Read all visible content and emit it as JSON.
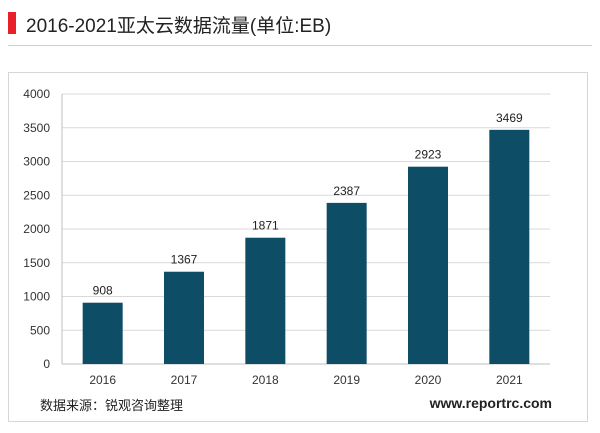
{
  "header": {
    "title": "2016-2021亚太云数据流量(单位:EB)",
    "accent_color": "#e8202a"
  },
  "chart_data": {
    "type": "bar",
    "title": "",
    "xlabel": "",
    "ylabel": "",
    "categories": [
      "2016",
      "2017",
      "2018",
      "2019",
      "2020",
      "2021"
    ],
    "values": [
      908,
      1367,
      1871,
      2387,
      2923,
      3469
    ],
    "ylim": [
      0,
      4000
    ],
    "yticks": [
      0,
      500,
      1000,
      1500,
      2000,
      2500,
      3000,
      3500,
      4000
    ],
    "grid": true,
    "bar_color": "#0e4d66",
    "data_labels": true
  },
  "footer": {
    "source": "数据来源：锐观咨询整理",
    "website": "www.reportrc.com"
  }
}
